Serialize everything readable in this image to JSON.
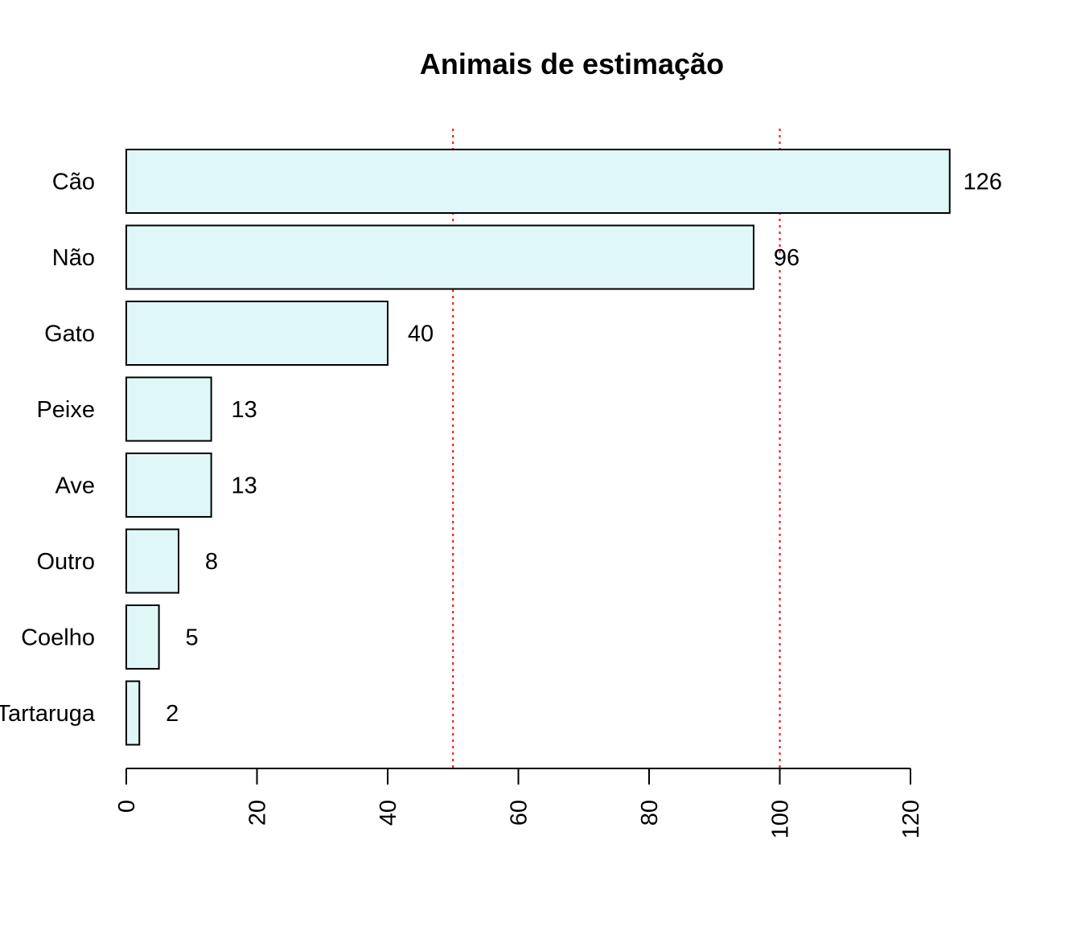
{
  "chart_data": {
    "type": "bar",
    "orientation": "horizontal",
    "title": "Animais de estimação",
    "xlabel": "",
    "ylabel": "",
    "categories": [
      "Cão",
      "Não",
      "Gato",
      "Peixe",
      "Ave",
      "Outro",
      "Coelho",
      "Tartaruga"
    ],
    "values": [
      126,
      96,
      40,
      13,
      13,
      8,
      5,
      2
    ],
    "data_labels": [
      "126",
      "96",
      "40",
      "13",
      "13",
      "8",
      "5",
      "2"
    ],
    "xlim": [
      0,
      120
    ],
    "x_ticks": [
      0,
      20,
      40,
      60,
      80,
      100,
      120
    ],
    "x_tick_labels": [
      "0",
      "20",
      "40",
      "60",
      "80",
      "100",
      "120"
    ],
    "reference_lines": [
      50,
      100
    ],
    "reference_line_color": "#ff0000",
    "bar_fill": "#e0f7f8",
    "bar_stroke": "#000000",
    "grid": false,
    "legend": "none"
  }
}
